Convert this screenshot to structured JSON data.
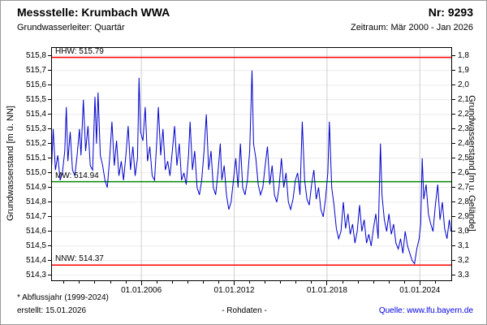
{
  "header": {
    "title": "Messstelle: Krumbach WWA",
    "number": "Nr: 9293",
    "aquifer": "Grundwasserleiter: Quartär",
    "period": "Zeitraum: Mär 2000 - Jan 2026"
  },
  "footer": {
    "footnote": "* Abflussjahr (1999-2024)",
    "created": "erstellt: 15.01.2026",
    "center": "- Rohdaten -",
    "source": "Quelle: www.lfu.bayern.de"
  },
  "colors": {
    "series": "#0000cc",
    "hhw_nnw": "#ff0000",
    "mw": "#008a00",
    "grid_h": "#ececec",
    "grid_v": "#cfcfcf",
    "link": "#0000dd"
  },
  "chart_data": {
    "type": "line",
    "title": "Messstelle: Krumbach WWA",
    "y_left": {
      "label": "Grundwasserstand [m ü. NN]",
      "min": 514.26,
      "max": 515.86,
      "tick_values": [
        515.8,
        515.7,
        515.6,
        515.5,
        515.4,
        515.3,
        515.2,
        515.1,
        515.0,
        514.9,
        514.8,
        514.7,
        514.6,
        514.5,
        514.4,
        514.3
      ],
      "tick_labels": [
        "515,8",
        "515,7",
        "515,6",
        "515,5",
        "515,4",
        "515,3",
        "515,2",
        "515,1",
        "515,0",
        "514,9",
        "514,8",
        "514,7",
        "514,6",
        "514,5",
        "514,4",
        "514,3"
      ]
    },
    "y_right": {
      "label": "Grundwasserstand [m u. Gelände]",
      "tick_labels": [
        "1,8",
        "1,9",
        "2,0",
        "2,1",
        "2,2",
        "2,3",
        "2,4",
        "2,5",
        "2,6",
        "2,7",
        "2,8",
        "2,9",
        "3,0",
        "3,1",
        "3,2",
        "3,3"
      ]
    },
    "x": {
      "min": 2000.17,
      "max": 2026.08,
      "tick_values": [
        2006.0,
        2012.0,
        2018.0,
        2024.0
      ],
      "tick_labels": [
        "01.01.2006",
        "01.01.2012",
        "01.01.2018",
        "01.01.2024"
      ],
      "minor_years": [
        2001,
        2002,
        2003,
        2004,
        2005,
        2007,
        2008,
        2009,
        2010,
        2011,
        2013,
        2014,
        2015,
        2016,
        2017,
        2019,
        2020,
        2021,
        2022,
        2023,
        2025
      ]
    },
    "reference_lines": [
      {
        "name": "hhw",
        "label": "HHW: 515.79",
        "value": 515.79,
        "color": "#ff0000"
      },
      {
        "name": "mw",
        "label": "MW: 514.94",
        "value": 514.94,
        "color": "#008a00"
      },
      {
        "name": "nnw",
        "label": "NNW: 514.37",
        "value": 514.37,
        "color": "#ff0000"
      }
    ],
    "series": [
      {
        "name": "Grundwasserstand Rohdaten",
        "color": "#0000cc",
        "points": [
          [
            2000.2,
            515.05
          ],
          [
            2000.3,
            515.3
          ],
          [
            2000.45,
            515.02
          ],
          [
            2000.6,
            515.12
          ],
          [
            2000.75,
            514.95
          ],
          [
            2000.9,
            515.0
          ],
          [
            2001.05,
            515.15
          ],
          [
            2001.15,
            515.45
          ],
          [
            2001.25,
            515.08
          ],
          [
            2001.4,
            515.28
          ],
          [
            2001.55,
            515.02
          ],
          [
            2001.7,
            514.98
          ],
          [
            2001.85,
            515.12
          ],
          [
            2002.0,
            515.3
          ],
          [
            2002.1,
            515.12
          ],
          [
            2002.25,
            515.5
          ],
          [
            2002.4,
            515.15
          ],
          [
            2002.55,
            515.32
          ],
          [
            2002.7,
            515.05
          ],
          [
            2002.85,
            515.02
          ],
          [
            2003.0,
            515.52
          ],
          [
            2003.1,
            515.2
          ],
          [
            2003.2,
            515.55
          ],
          [
            2003.35,
            515.12
          ],
          [
            2003.5,
            515.05
          ],
          [
            2003.65,
            514.95
          ],
          [
            2003.8,
            514.9
          ],
          [
            2003.95,
            515.1
          ],
          [
            2004.1,
            515.35
          ],
          [
            2004.25,
            515.05
          ],
          [
            2004.4,
            515.22
          ],
          [
            2004.55,
            514.98
          ],
          [
            2004.7,
            515.08
          ],
          [
            2004.85,
            514.95
          ],
          [
            2005.0,
            515.12
          ],
          [
            2005.15,
            515.32
          ],
          [
            2005.3,
            515.02
          ],
          [
            2005.45,
            515.18
          ],
          [
            2005.6,
            514.98
          ],
          [
            2005.75,
            515.1
          ],
          [
            2005.85,
            515.65
          ],
          [
            2005.95,
            515.28
          ],
          [
            2006.1,
            515.22
          ],
          [
            2006.25,
            515.45
          ],
          [
            2006.4,
            515.08
          ],
          [
            2006.55,
            515.18
          ],
          [
            2006.7,
            514.98
          ],
          [
            2006.85,
            514.95
          ],
          [
            2007.0,
            515.22
          ],
          [
            2007.1,
            515.45
          ],
          [
            2007.25,
            515.12
          ],
          [
            2007.4,
            515.3
          ],
          [
            2007.55,
            515.02
          ],
          [
            2007.7,
            515.08
          ],
          [
            2007.85,
            514.98
          ],
          [
            2008.0,
            515.15
          ],
          [
            2008.15,
            515.32
          ],
          [
            2008.3,
            515.05
          ],
          [
            2008.45,
            515.2
          ],
          [
            2008.6,
            514.95
          ],
          [
            2008.75,
            515.0
          ],
          [
            2008.9,
            514.92
          ],
          [
            2009.05,
            515.12
          ],
          [
            2009.15,
            515.35
          ],
          [
            2009.3,
            515.02
          ],
          [
            2009.45,
            515.15
          ],
          [
            2009.6,
            514.9
          ],
          [
            2009.75,
            514.85
          ],
          [
            2009.9,
            514.95
          ],
          [
            2010.05,
            515.15
          ],
          [
            2010.2,
            515.4
          ],
          [
            2010.35,
            515.02
          ],
          [
            2010.5,
            515.15
          ],
          [
            2010.65,
            514.9
          ],
          [
            2010.8,
            514.85
          ],
          [
            2010.95,
            515.0
          ],
          [
            2011.1,
            515.2
          ],
          [
            2011.2,
            514.95
          ],
          [
            2011.35,
            515.05
          ],
          [
            2011.5,
            514.85
          ],
          [
            2011.65,
            514.75
          ],
          [
            2011.8,
            514.8
          ],
          [
            2011.95,
            514.95
          ],
          [
            2012.1,
            515.1
          ],
          [
            2012.25,
            514.9
          ],
          [
            2012.4,
            515.2
          ],
          [
            2012.55,
            514.9
          ],
          [
            2012.7,
            514.85
          ],
          [
            2012.85,
            514.95
          ],
          [
            2013.0,
            515.15
          ],
          [
            2013.15,
            515.7
          ],
          [
            2013.25,
            515.2
          ],
          [
            2013.4,
            515.1
          ],
          [
            2013.55,
            514.92
          ],
          [
            2013.7,
            514.85
          ],
          [
            2013.85,
            514.9
          ],
          [
            2014.0,
            515.05
          ],
          [
            2014.15,
            515.18
          ],
          [
            2014.3,
            514.92
          ],
          [
            2014.45,
            515.05
          ],
          [
            2014.6,
            514.85
          ],
          [
            2014.75,
            514.8
          ],
          [
            2014.9,
            514.9
          ],
          [
            2015.05,
            515.1
          ],
          [
            2015.2,
            514.9
          ],
          [
            2015.35,
            515.0
          ],
          [
            2015.5,
            514.8
          ],
          [
            2015.65,
            514.75
          ],
          [
            2015.8,
            514.82
          ],
          [
            2015.95,
            514.95
          ],
          [
            2016.1,
            515.0
          ],
          [
            2016.25,
            514.85
          ],
          [
            2016.4,
            515.35
          ],
          [
            2016.55,
            514.95
          ],
          [
            2016.7,
            514.82
          ],
          [
            2016.85,
            514.78
          ],
          [
            2017.0,
            514.92
          ],
          [
            2017.15,
            515.02
          ],
          [
            2017.3,
            514.82
          ],
          [
            2017.45,
            514.9
          ],
          [
            2017.6,
            514.75
          ],
          [
            2017.75,
            514.7
          ],
          [
            2017.9,
            514.82
          ],
          [
            2018.05,
            515.0
          ],
          [
            2018.15,
            515.35
          ],
          [
            2018.3,
            514.9
          ],
          [
            2018.45,
            514.78
          ],
          [
            2018.6,
            514.62
          ],
          [
            2018.75,
            514.55
          ],
          [
            2018.9,
            514.6
          ],
          [
            2019.05,
            514.8
          ],
          [
            2019.2,
            514.62
          ],
          [
            2019.35,
            514.72
          ],
          [
            2019.5,
            514.58
          ],
          [
            2019.65,
            514.65
          ],
          [
            2019.8,
            514.52
          ],
          [
            2019.95,
            514.6
          ],
          [
            2020.1,
            514.78
          ],
          [
            2020.25,
            514.6
          ],
          [
            2020.4,
            514.68
          ],
          [
            2020.55,
            514.52
          ],
          [
            2020.7,
            514.58
          ],
          [
            2020.85,
            514.5
          ],
          [
            2021.0,
            514.62
          ],
          [
            2021.15,
            514.72
          ],
          [
            2021.3,
            514.55
          ],
          [
            2021.45,
            515.2
          ],
          [
            2021.55,
            514.85
          ],
          [
            2021.7,
            514.68
          ],
          [
            2021.85,
            514.6
          ],
          [
            2022.0,
            514.72
          ],
          [
            2022.15,
            514.58
          ],
          [
            2022.3,
            514.65
          ],
          [
            2022.45,
            514.52
          ],
          [
            2022.6,
            514.48
          ],
          [
            2022.75,
            514.55
          ],
          [
            2022.9,
            514.45
          ],
          [
            2023.05,
            514.6
          ],
          [
            2023.2,
            514.5
          ],
          [
            2023.35,
            514.45
          ],
          [
            2023.5,
            514.4
          ],
          [
            2023.65,
            514.38
          ],
          [
            2023.8,
            514.48
          ],
          [
            2023.95,
            514.55
          ],
          [
            2024.05,
            514.65
          ],
          [
            2024.15,
            515.1
          ],
          [
            2024.25,
            514.82
          ],
          [
            2024.4,
            514.92
          ],
          [
            2024.55,
            514.72
          ],
          [
            2024.7,
            514.65
          ],
          [
            2024.85,
            514.6
          ],
          [
            2025.0,
            514.78
          ],
          [
            2025.15,
            514.92
          ],
          [
            2025.3,
            514.68
          ],
          [
            2025.45,
            514.8
          ],
          [
            2025.6,
            514.62
          ],
          [
            2025.75,
            514.55
          ],
          [
            2025.9,
            514.68
          ],
          [
            2026.0,
            514.6
          ]
        ]
      }
    ]
  }
}
